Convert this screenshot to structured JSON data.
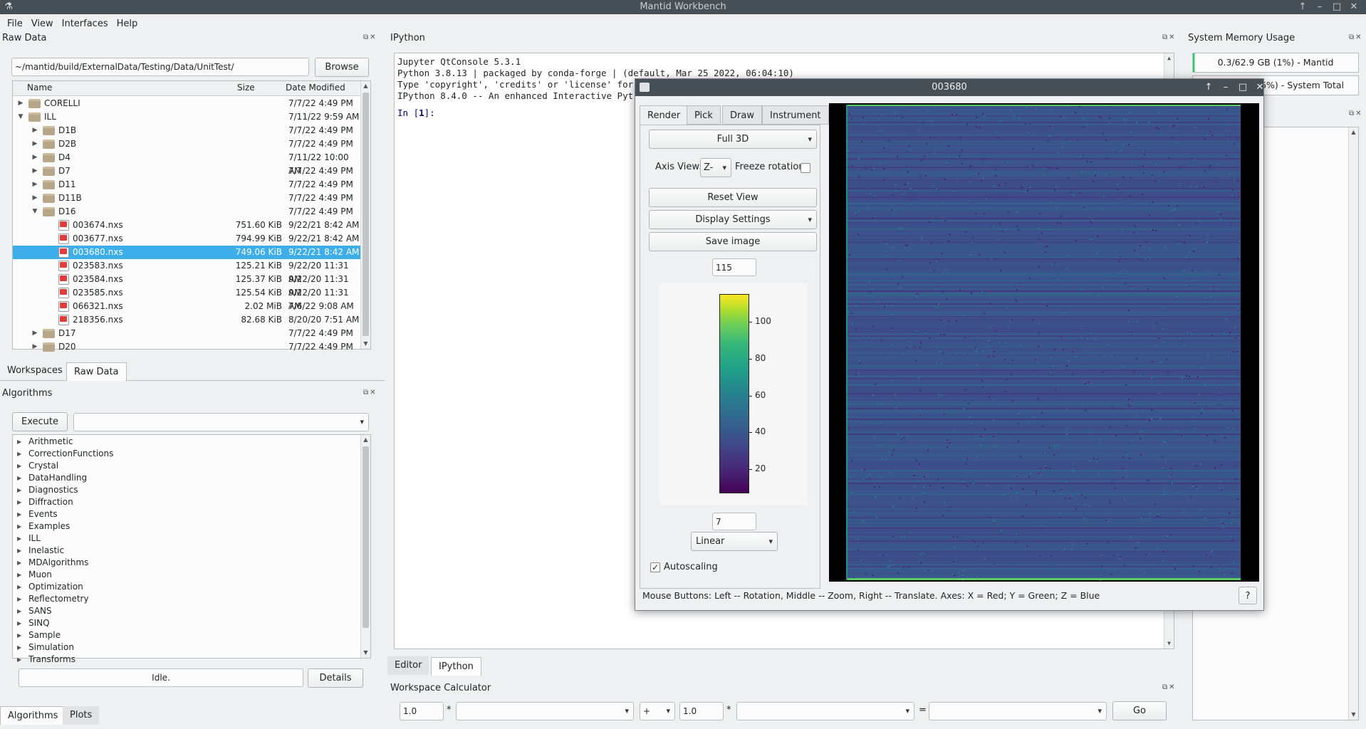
{
  "window": {
    "title": "Mantid Workbench"
  },
  "menu": [
    "File",
    "View",
    "Interfaces",
    "Help"
  ],
  "raw_data": {
    "title": "Raw Data",
    "path": "~/mantid/build/ExternalData/Testing/Data/UnitTest/",
    "browse": "Browse",
    "columns": [
      "Name",
      "Size",
      "Date Modified"
    ],
    "rows": [
      {
        "name": "CORELLI",
        "size": "",
        "date": "7/7/22 4:49 PM",
        "level": 0,
        "type": "folder",
        "open": false
      },
      {
        "name": "ILL",
        "size": "",
        "date": "7/11/22 9:59 AM",
        "level": 0,
        "type": "folder",
        "open": true
      },
      {
        "name": "D1B",
        "size": "",
        "date": "7/7/22 4:49 PM",
        "level": 1,
        "type": "folder",
        "open": false
      },
      {
        "name": "D2B",
        "size": "",
        "date": "7/7/22 4:49 PM",
        "level": 1,
        "type": "folder",
        "open": false
      },
      {
        "name": "D4",
        "size": "",
        "date": "7/11/22 10:00 AM",
        "level": 1,
        "type": "folder",
        "open": false
      },
      {
        "name": "D7",
        "size": "",
        "date": "7/7/22 4:49 PM",
        "level": 1,
        "type": "folder",
        "open": false
      },
      {
        "name": "D11",
        "size": "",
        "date": "7/7/22 4:49 PM",
        "level": 1,
        "type": "folder",
        "open": false
      },
      {
        "name": "D11B",
        "size": "",
        "date": "7/7/22 4:49 PM",
        "level": 1,
        "type": "folder",
        "open": false
      },
      {
        "name": "D16",
        "size": "",
        "date": "7/7/22 4:49 PM",
        "level": 1,
        "type": "folder",
        "open": true
      },
      {
        "name": "003674.nxs",
        "size": "751.60 KiB",
        "date": "9/22/21 8:42 AM",
        "level": 2,
        "type": "file"
      },
      {
        "name": "003677.nxs",
        "size": "794.99 KiB",
        "date": "9/22/21 8:42 AM",
        "level": 2,
        "type": "file"
      },
      {
        "name": "003680.nxs",
        "size": "749.06 KiB",
        "date": "9/22/21 8:42 AM",
        "level": 2,
        "type": "file",
        "selected": true
      },
      {
        "name": "023583.nxs",
        "size": "125.21 KiB",
        "date": "9/22/20 11:31 AM",
        "level": 2,
        "type": "file"
      },
      {
        "name": "023584.nxs",
        "size": "125.37 KiB",
        "date": "9/22/20 11:31 AM",
        "level": 2,
        "type": "file"
      },
      {
        "name": "023585.nxs",
        "size": "125.54 KiB",
        "date": "9/22/20 11:31 AM",
        "level": 2,
        "type": "file"
      },
      {
        "name": "066321.nxs",
        "size": "2.02 MiB",
        "date": "7/6/22 9:08 AM",
        "level": 2,
        "type": "file"
      },
      {
        "name": "218356.nxs",
        "size": "82.68 KiB",
        "date": "8/20/20 7:51 AM",
        "level": 2,
        "type": "file"
      },
      {
        "name": "D17",
        "size": "",
        "date": "7/7/22 4:49 PM",
        "level": 1,
        "type": "folder",
        "open": false
      },
      {
        "name": "D20",
        "size": "",
        "date": "7/7/22 4:49 PM",
        "level": 1,
        "type": "folder",
        "open": false
      }
    ],
    "tabs": [
      "Workspaces",
      "Raw Data"
    ]
  },
  "algorithms": {
    "title": "Algorithms",
    "execute": "Execute",
    "items": [
      "Arithmetic",
      "CorrectionFunctions",
      "Crystal",
      "DataHandling",
      "Diagnostics",
      "Diffraction",
      "Events",
      "Examples",
      "ILL",
      "Inelastic",
      "MDAlgorithms",
      "Muon",
      "Optimization",
      "Reflectometry",
      "SANS",
      "SINQ",
      "Sample",
      "Simulation",
      "Transforms"
    ],
    "status": "Idle.",
    "details": "Details",
    "tabs": [
      "Algorithms",
      "Plots"
    ]
  },
  "ipython": {
    "title": "IPython",
    "lines": [
      "Jupyter QtConsole 5.3.1",
      "Python 3.8.13 | packaged by conda-forge | (default, Mar 25 2022, 06:04:10)",
      "Type 'copyright', 'credits' or 'license' for",
      "IPython 8.4.0 -- An enhanced Interactive Pyt"
    ],
    "prompt_in": "In [",
    "prompt_num": "1",
    "prompt_end": "]:",
    "tabs": [
      "Editor",
      "IPython"
    ]
  },
  "memory": {
    "title": "System Memory Usage",
    "mantid": "0.3/62.9 GB (1%) - Mantid",
    "system": "16%) - System Total"
  },
  "calculator": {
    "title": "Workspace Calculator",
    "scale1": "1.0",
    "op1": "*",
    "operator": "+",
    "scale2": "1.0",
    "op2": "*",
    "equals": "=",
    "go": "Go"
  },
  "instrument_window": {
    "title": "003680",
    "tabs": [
      "Render",
      "Pick",
      "Draw",
      "Instrument"
    ],
    "projection": "Full 3D",
    "axis_view_label": "Axis View:",
    "axis_view": "Z-",
    "freeze_rotation": "Freeze rotation",
    "reset_view": "Reset View",
    "display_settings": "Display Settings",
    "save_image": "Save image",
    "max_value": "115",
    "min_value": "7",
    "scale": "Linear",
    "autoscaling": "Autoscaling",
    "colorbar_ticks": [
      "100",
      "80",
      "60",
      "40",
      "20"
    ],
    "status": "Mouse Buttons: Left -- Rotation, Middle -- Zoom, Right -- Translate. Axes: X = Red; Y = Green; Z = Blue",
    "help": "?"
  }
}
